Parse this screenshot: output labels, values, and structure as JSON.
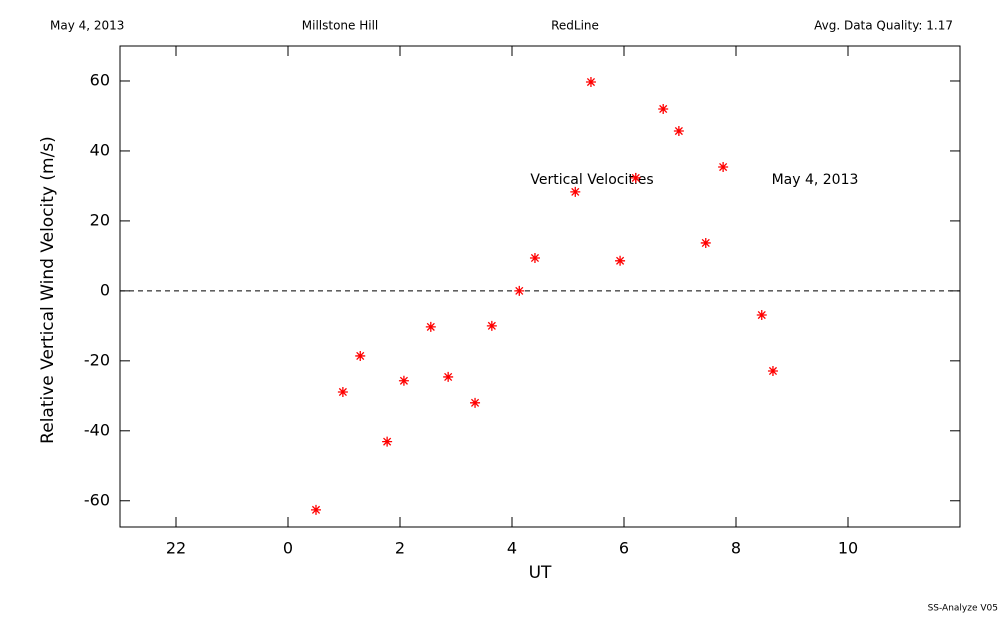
{
  "chart_data": {
    "type": "scatter",
    "header": [
      "May 4, 2013",
      "Millstone Hill",
      "RedLine",
      "Avg. Data Quality: 1.17"
    ],
    "x_label": "UT",
    "y_label": "Relative Vertical Wind Velocity (m/s)",
    "annotations": [
      "Vertical Velocities",
      "May 4, 2013"
    ],
    "footer": "SS-Analyze V05",
    "xlim": [
      -3,
      12
    ],
    "ylim": [
      -67.5,
      70
    ],
    "xticks": [
      {
        "value": -2,
        "label": "22"
      },
      0,
      2,
      4,
      6,
      8,
      10
    ],
    "yticks": [
      -60,
      -40,
      -20,
      0,
      20,
      40,
      60
    ],
    "reference_line": 0,
    "color": "#ff0000",
    "x": [
      0.5,
      0.98,
      1.29,
      1.77,
      2.07,
      2.55,
      2.86,
      3.34,
      3.64,
      4.13,
      4.41,
      5.13,
      5.41,
      5.93,
      6.21,
      6.7,
      6.98,
      7.46,
      7.77,
      8.46,
      8.66
    ],
    "values": [
      -62.6,
      -28.9,
      -18.6,
      -43.1,
      -25.7,
      -10.3,
      -24.6,
      -32,
      -10,
      0,
      9.4,
      28.3,
      59.7,
      8.6,
      32.3,
      52,
      45.7,
      13.7,
      35.4,
      -6.9,
      -22.9
    ]
  }
}
